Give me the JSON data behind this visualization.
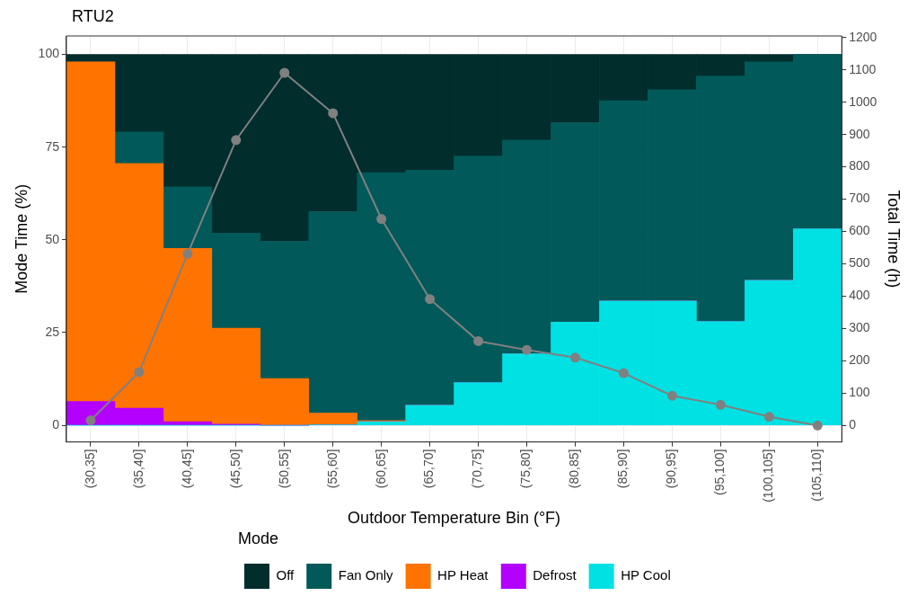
{
  "chart_data": {
    "type": "bar",
    "title": "RTU2",
    "xlabel": "Outdoor Temperature Bin (°F)",
    "ylabel": "Mode Time (%)",
    "y2label": "Total Time (h)",
    "legend_title": "Mode",
    "categories": [
      "(30,35]",
      "(35,40]",
      "(40,45]",
      "(45,50]",
      "(50,55]",
      "(55,60]",
      "(60,65]",
      "(65,70]",
      "(70,75]",
      "(75,80]",
      "(80,85]",
      "(85,90]",
      "(90,95]",
      "(95,100]",
      "(100,105]",
      "(105,110]"
    ],
    "stacked": true,
    "series": [
      {
        "name": "HP Cool",
        "color": "#00e1e4",
        "values": [
          0,
          0,
          0,
          0,
          0,
          0.1,
          1.0,
          5.4,
          11.5,
          19.3,
          27.8,
          33.5,
          33.5,
          28.0,
          39.1,
          53.0
        ]
      },
      {
        "name": "Defrost",
        "color": "#b300ff",
        "values": [
          6.4,
          4.6,
          1.0,
          0.3,
          0,
          0,
          0,
          0,
          0,
          0,
          0,
          0,
          0,
          0,
          0,
          0
        ]
      },
      {
        "name": "HP Heat",
        "color": "#ff7300",
        "values": [
          91.6,
          66.0,
          46.7,
          25.9,
          12.6,
          3.2,
          0.3,
          0,
          0,
          0,
          0,
          0,
          0,
          0,
          0,
          0
        ]
      },
      {
        "name": "Fan Only",
        "color": "#015959",
        "values": [
          0,
          8.5,
          16.6,
          25.6,
          37.0,
          54.3,
          66.8,
          63.4,
          61.1,
          57.6,
          53.8,
          54.0,
          57.0,
          66.2,
          58.9,
          47.0
        ]
      },
      {
        "name": "Off",
        "color": "#012d2d",
        "values": [
          2.0,
          20.9,
          35.7,
          48.2,
          50.4,
          42.4,
          31.9,
          31.2,
          27.4,
          23.1,
          18.4,
          12.5,
          9.5,
          5.8,
          2.0,
          0
        ]
      },
      {
        "type": "line",
        "axis": "y2",
        "color": "#808080",
        "values": [
          16,
          165,
          531,
          883,
          1091,
          966,
          639,
          391,
          261,
          234,
          210,
          162,
          92,
          64,
          27,
          0
        ]
      }
    ],
    "ylim": [
      -4.5,
      105
    ],
    "yticks": [
      0,
      25,
      50,
      75,
      100
    ],
    "y2lim": [
      -51,
      1205
    ],
    "y2ticks": [
      0,
      100,
      200,
      300,
      400,
      500,
      600,
      700,
      800,
      900,
      1000,
      1100,
      1200
    ],
    "grid": true,
    "legend": "bottom",
    "marker": "circle"
  }
}
